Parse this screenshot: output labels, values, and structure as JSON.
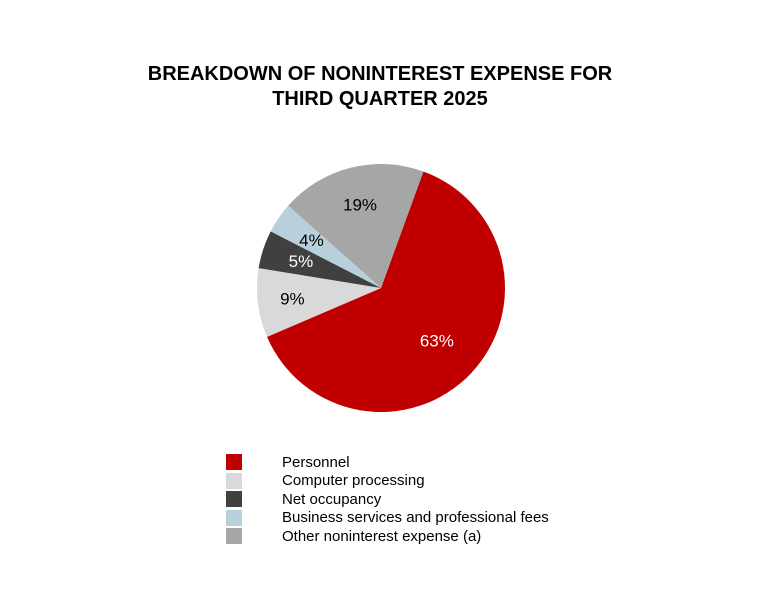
{
  "chart_data": {
    "type": "pie",
    "title": [
      "BREAKDOWN OF NONINTEREST EXPENSE FOR",
      "THIRD QUARTER 2025"
    ],
    "categories": [
      "Personnel",
      "Computer processing",
      "Net occupancy",
      "Business services and professional fees",
      "Other noninterest expense (a)"
    ],
    "values": [
      63,
      9,
      5,
      4,
      19
    ],
    "labels": [
      "63%",
      "9%",
      "5%",
      "4%",
      "19%"
    ],
    "colors": [
      "#c00000",
      "#d9d9d9",
      "#404040",
      "#b8cfdc",
      "#a6a6a6"
    ],
    "label_colors": [
      "#ffffff",
      "#000000",
      "#ffffff",
      "#000000",
      "#000000"
    ],
    "legend_position": "bottom"
  }
}
